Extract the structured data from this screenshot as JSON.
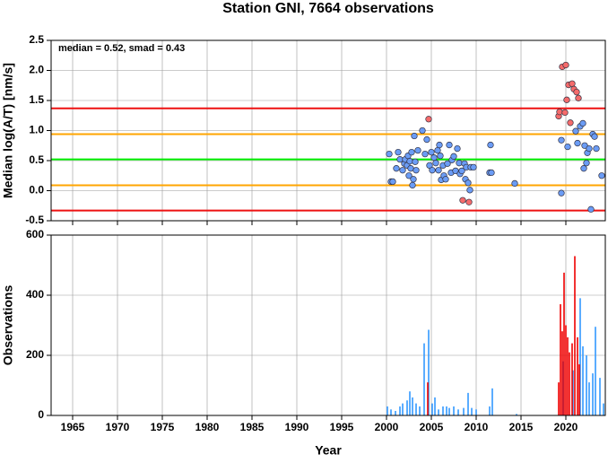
{
  "chart_data": [
    {
      "type": "scatter",
      "title": "Station GNI, 7664 observations",
      "ylabel": "Median log(A/T) [nm/s]",
      "annotation": "median = 0.52, smad = 0.43",
      "xlim": [
        1962.6,
        2024.4
      ],
      "ylim": [
        -0.5,
        2.5
      ],
      "yticks": [
        -0.5,
        {
          "value": 0,
          "label": "0.0"
        },
        0.5,
        {
          "value": 1,
          "label": "1.0"
        },
        1.5,
        {
          "value": 2,
          "label": "2.0"
        },
        2.5
      ],
      "grid": true,
      "hlines": [
        {
          "value": 1.37,
          "color": "#ee1111"
        },
        {
          "value": 0.94,
          "color": "#ffa500"
        },
        {
          "value": 0.52,
          "color": "#00ee00"
        },
        {
          "value": 0.09,
          "color": "#ffa500"
        },
        {
          "value": -0.33,
          "color": "#ee1111"
        }
      ],
      "series": [
        {
          "color": "#6b9cf5",
          "x": [
            2000.3,
            2000.5,
            2000.7,
            2001.1,
            2001.3,
            2001.5,
            2001.8,
            2002.0,
            2002.1,
            2002.3,
            2002.4,
            2002.5,
            2002.6,
            2002.7,
            2002.8,
            2002.9,
            2003.0,
            2003.1,
            2003.2,
            2003.3,
            2003.5,
            2004.0,
            2004.3,
            2004.5,
            2004.8,
            2005.0,
            2005.1,
            2005.3,
            2005.5,
            2005.7,
            2005.8,
            2005.9,
            2006.0,
            2006.1,
            2006.3,
            2006.4,
            2006.6,
            2006.8,
            2007.0,
            2007.2,
            2007.3,
            2007.5,
            2007.7,
            2007.9,
            2008.1,
            2008.2,
            2008.4,
            2008.7,
            2008.8,
            2008.9,
            2009.1,
            2009.3,
            2009.4,
            2009.7,
            2011.5,
            2011.6,
            2011.7,
            2014.3,
            2019.5,
            2019.5,
            2020.2,
            2021.1,
            2021.3,
            2021.6,
            2021.9,
            2022.0,
            2022.1,
            2022.3,
            2022.4,
            2022.6,
            2022.8,
            2023.0,
            2023.2,
            2023.4,
            2024.0
          ],
          "values": [
            0.61,
            0.15,
            0.15,
            0.37,
            0.64,
            0.52,
            0.34,
            0.45,
            0.52,
            0.42,
            0.58,
            0.25,
            0.49,
            0.37,
            0.64,
            0.09,
            0.19,
            0.91,
            0.48,
            0.34,
            0.67,
            1.0,
            0.61,
            0.85,
            0.42,
            0.64,
            0.34,
            0.55,
            0.46,
            0.67,
            0.34,
            0.76,
            0.58,
            0.18,
            0.42,
            0.25,
            0.19,
            0.45,
            0.76,
            0.3,
            0.51,
            0.57,
            0.33,
            0.7,
            0.46,
            0.28,
            0.33,
            0.45,
            0.19,
            0.39,
            0.13,
            0.01,
            0.39,
            0.39,
            0.3,
            0.76,
            0.3,
            0.12,
            0.84,
            -0.04,
            0.73,
            0.99,
            0.79,
            1.07,
            1.12,
            0.37,
            0.75,
            0.46,
            0.63,
            0.7,
            -0.31,
            0.94,
            0.9,
            0.7,
            0.25
          ]
        },
        {
          "color": "#f56b6b",
          "x": [
            2004.7,
            2008.5,
            2009.2,
            2019.2,
            2019.3,
            2019.6,
            2019.9,
            2020.0,
            2020.1,
            2020.3,
            2020.5,
            2020.7,
            2020.9,
            2021.2,
            2021.4
          ],
          "values": [
            1.19,
            -0.16,
            -0.19,
            1.24,
            1.31,
            2.06,
            1.3,
            2.09,
            1.51,
            1.76,
            1.13,
            1.78,
            1.69,
            1.64,
            1.54
          ]
        }
      ]
    },
    {
      "type": "bar",
      "ylabel": "Observations",
      "xlabel": "Year",
      "xlim": [
        1962.6,
        2024.4
      ],
      "ylim": [
        0,
        600
      ],
      "xticks": [
        1965,
        1970,
        1975,
        1980,
        1985,
        1990,
        1995,
        2000,
        2005,
        2010,
        2015,
        2020
      ],
      "yticks": [
        0,
        200,
        400,
        600
      ],
      "grid": true,
      "series": [
        {
          "color": "#3399ff",
          "x": [
            2000.1,
            2000.5,
            2001.0,
            2001.5,
            2001.8,
            2002.3,
            2002.6,
            2002.9,
            2003.3,
            2003.7,
            2004.2,
            2004.7,
            2005.1,
            2005.4,
            2005.8,
            2006.3,
            2006.7,
            2007.0,
            2007.5,
            2008.0,
            2008.6,
            2009.1,
            2009.5,
            2010.0,
            2011.5,
            2011.8,
            2014.5,
            2019.7,
            2020.8,
            2021.6,
            2021.9,
            2022.3,
            2022.6,
            2023.0,
            2023.3,
            2023.8,
            2024.2
          ],
          "values": [
            30,
            20,
            15,
            30,
            40,
            50,
            80,
            60,
            40,
            30,
            240,
            285,
            40,
            60,
            20,
            30,
            30,
            25,
            30,
            20,
            25,
            75,
            25,
            20,
            30,
            90,
            5,
            180,
            150,
            390,
            230,
            200,
            110,
            140,
            295,
            125,
            40
          ]
        },
        {
          "color": "#ee0000",
          "x": [
            2004.6,
            2019.2,
            2019.4,
            2019.6,
            2019.8,
            2020.0,
            2020.2,
            2020.4,
            2020.7,
            2021.0,
            2021.3,
            2021.5
          ],
          "values": [
            110,
            110,
            370,
            280,
            475,
            300,
            260,
            210,
            240,
            530,
            260,
            170
          ]
        }
      ]
    }
  ]
}
